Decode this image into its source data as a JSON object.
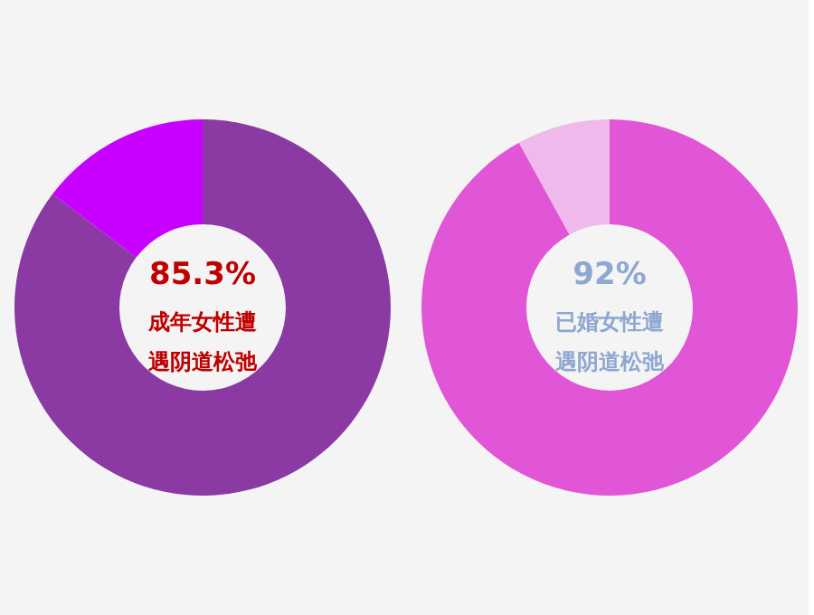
{
  "chart_data": [
    {
      "type": "donut",
      "categories": [
        null,
        null
      ],
      "values": [
        85.3,
        14.7
      ],
      "colors": [
        "#8b39a3",
        "#c800ff"
      ],
      "value_labels": [
        "85.3%",
        null
      ],
      "annotations": [
        "成年女性遭遇阴道松弛"
      ]
    },
    {
      "type": "donut",
      "categories": [
        null,
        null
      ],
      "values": [
        92,
        8
      ],
      "colors": [
        "#e056d6",
        "#f0b9eb"
      ],
      "value_labels": [
        "92%",
        null
      ],
      "annotations": [
        "已婚女性遭遇阴道松弛"
      ]
    }
  ]
}
